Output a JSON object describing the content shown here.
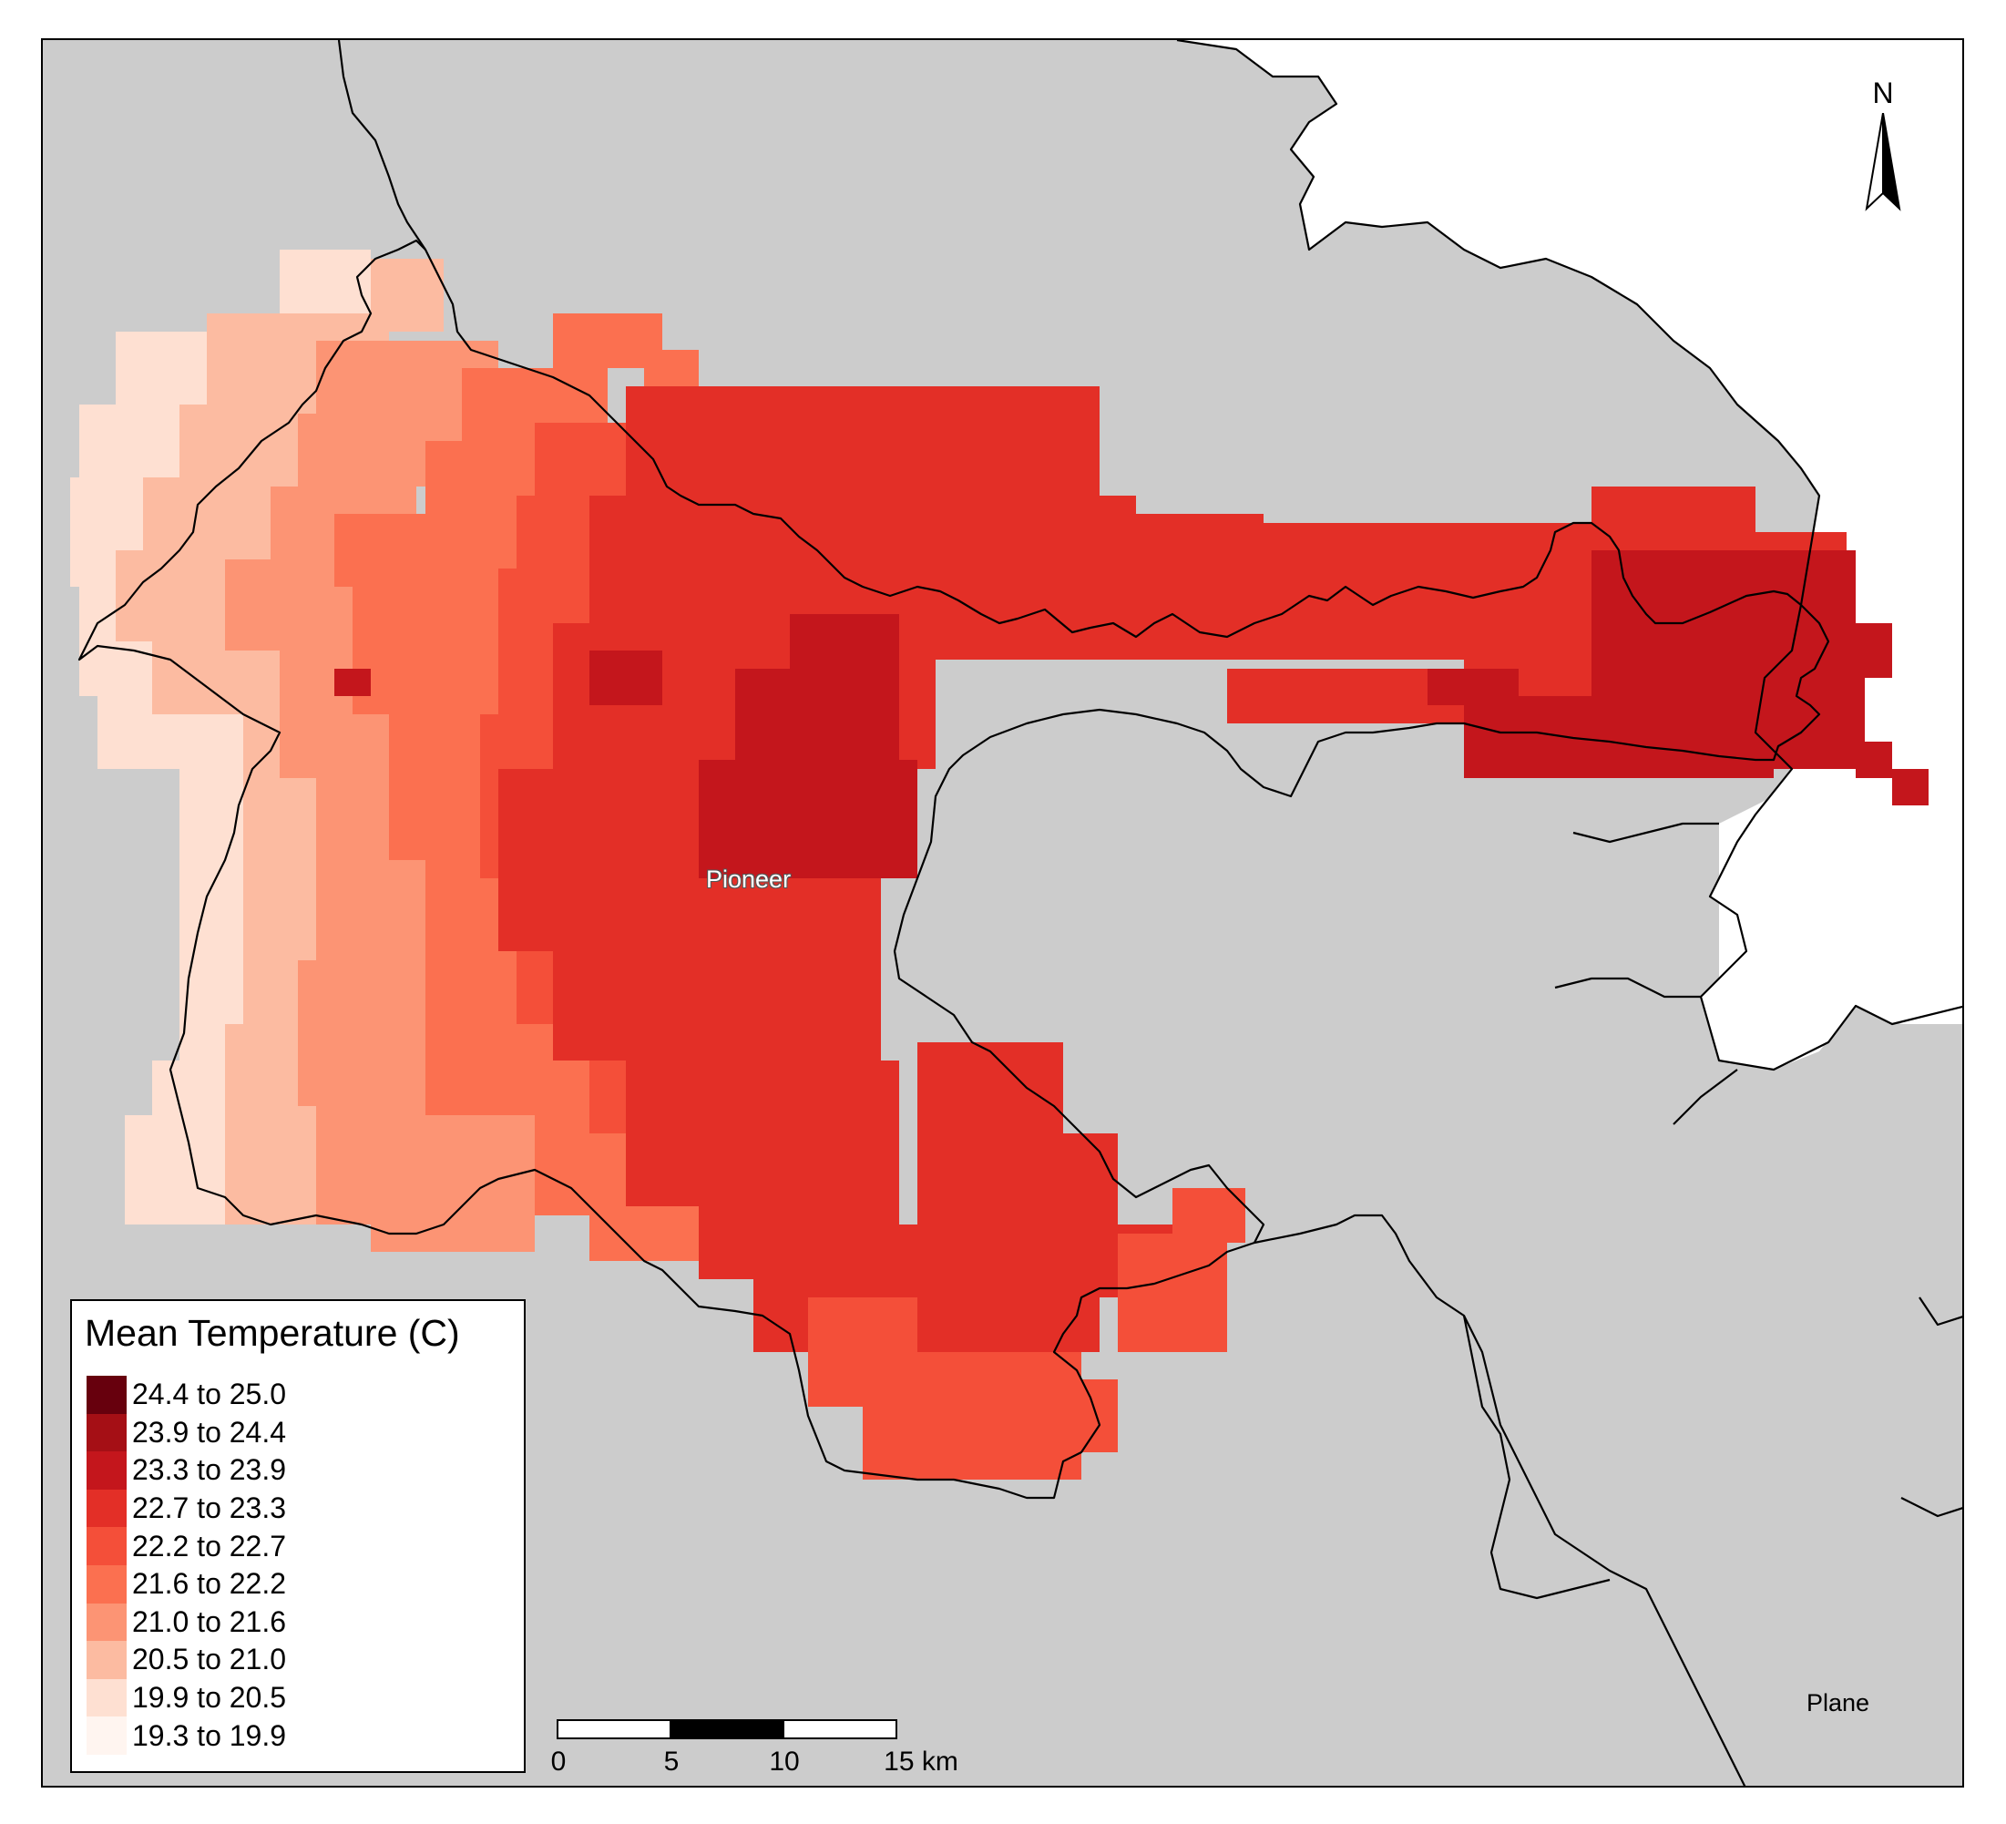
{
  "map": {
    "place_labels": [
      "Pioneer",
      "Plane"
    ],
    "colors": {
      "land": "#cccccc",
      "water": "#ffffff",
      "boundary": "#000000"
    }
  },
  "legend": {
    "title": "Mean Temperature (C)",
    "items": [
      {
        "label": "24.4 to 25.0",
        "color": "#67000d"
      },
      {
        "label": "23.9 to 24.4",
        "color": "#a50f15"
      },
      {
        "label": "23.3 to 23.9",
        "color": "#c4161c"
      },
      {
        "label": "22.7 to 23.3",
        "color": "#e32f27"
      },
      {
        "label": "22.2 to 22.7",
        "color": "#f44f39"
      },
      {
        "label": "21.6 to 22.2",
        "color": "#fb7050"
      },
      {
        "label": "21.0 to 21.6",
        "color": "#fc9474"
      },
      {
        "label": "20.5 to 21.0",
        "color": "#fcbba1"
      },
      {
        "label": "19.9 to 20.5",
        "color": "#fee0d2"
      },
      {
        "label": "19.3 to 19.9",
        "color": "#fff5f0"
      }
    ]
  },
  "scale_bar": {
    "ticks": [
      "0",
      "5",
      "10",
      "15 km"
    ]
  },
  "north_arrow": {
    "label": "N"
  }
}
